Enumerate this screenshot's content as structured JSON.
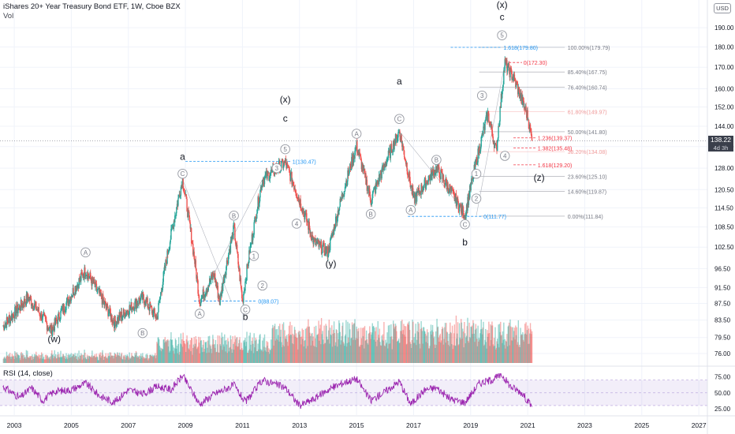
{
  "header": {
    "title": "iShares 20+ Year Treasury Bond ETF, 1W, Cboe BZX",
    "vol_label": "Vol",
    "currency": "USD",
    "last_price": "138.22",
    "countdown": "4d 3h"
  },
  "colors": {
    "up": "#26a69a",
    "down": "#ef5350",
    "fib_blue": "#2196f3",
    "fib_red": "#f23645",
    "rsi_line": "#9c27b0",
    "rsi_band": "#7e57c2",
    "wave_circle": "#9598a1"
  },
  "chart_data": [
    {
      "type": "candlestick",
      "title": "iShares 20+ Year Treasury Bond ETF, 1W, Cboe BZX",
      "x_axis": {
        "ticks": [
          "2003",
          "2005",
          "2007",
          "2009",
          "2011",
          "2013",
          "2015",
          "2017",
          "2019",
          "2021",
          "2023",
          "2025",
          "2027"
        ]
      },
      "y_axis": {
        "scale": "log",
        "ticks": [
          76.0,
          79.5,
          83.5,
          87.5,
          91.5,
          96.5,
          102.5,
          108.5,
          114.5,
          120.5,
          128.0,
          136.0,
          144.0,
          152.0,
          160.0,
          170.0,
          180.0,
          190.0
        ],
        "range": [
          74,
          200
        ]
      },
      "series": [
        {
          "points": [
            {
              "x": 2002.6,
              "y": 82
            },
            {
              "x": 2003.5,
              "y": 89
            },
            {
              "x": 2004.3,
              "y": 81
            },
            {
              "x": 2005.5,
              "y": 96
            },
            {
              "x": 2006.5,
              "y": 83
            },
            {
              "x": 2007.5,
              "y": 89
            },
            {
              "x": 2008.0,
              "y": 84
            },
            {
              "x": 2008.9,
              "y": 124
            },
            {
              "x": 2009.5,
              "y": 88
            },
            {
              "x": 2010.0,
              "y": 95
            },
            {
              "x": 2010.2,
              "y": 88
            },
            {
              "x": 2010.7,
              "y": 108
            },
            {
              "x": 2011.0,
              "y": 88
            },
            {
              "x": 2011.7,
              "y": 124
            },
            {
              "x": 2012.5,
              "y": 130
            },
            {
              "x": 2013.5,
              "y": 104
            },
            {
              "x": 2014.0,
              "y": 101
            },
            {
              "x": 2015.0,
              "y": 136
            },
            {
              "x": 2015.5,
              "y": 117
            },
            {
              "x": 2016.5,
              "y": 142
            },
            {
              "x": 2017.0,
              "y": 117
            },
            {
              "x": 2017.8,
              "y": 128
            },
            {
              "x": 2018.8,
              "y": 112
            },
            {
              "x": 2019.6,
              "y": 149
            },
            {
              "x": 2019.9,
              "y": 134
            },
            {
              "x": 2020.2,
              "y": 172
            },
            {
              "x": 2020.5,
              "y": 165
            },
            {
              "x": 2021.0,
              "y": 148
            },
            {
              "x": 2021.15,
              "y": 138.2
            }
          ]
        }
      ],
      "fib_retracement_labels": [
        {
          "text": "100.00%(179.79)",
          "value": 179.79
        },
        {
          "text": "85.40%(167.75)",
          "value": 167.75
        },
        {
          "text": "76.40%(160.74)",
          "value": 160.74
        },
        {
          "text": "61.80%(149.97)",
          "value": 149.97
        },
        {
          "text": "50.00%(141.80)",
          "value": 141.8
        },
        {
          "text": "38.20%(134.08)",
          "value": 134.08
        },
        {
          "text": "23.60%(125.10)",
          "value": 125.1
        },
        {
          "text": "14.60%(119.87)",
          "value": 119.87
        },
        {
          "text": "0.00%(111.84)",
          "value": 111.84
        }
      ],
      "fib_extension_labels": [
        {
          "text": "1.618(179.80)",
          "value": 179.8,
          "color": "blue"
        },
        {
          "text": "0(172.30)",
          "value": 172.3,
          "color": "red"
        },
        {
          "text": "1.236(139.37)",
          "value": 139.37,
          "color": "red"
        },
        {
          "text": "1.382(135.48)",
          "value": 135.48,
          "color": "red"
        },
        {
          "text": "1.618(129.20)",
          "value": 129.2,
          "color": "red"
        },
        {
          "text": "1(130.47)",
          "value": 130.47,
          "color": "blue"
        },
        {
          "text": "0(88.07)",
          "value": 88.07,
          "color": "blue"
        },
        {
          "text": "0(111.77)",
          "value": 111.77,
          "color": "blue"
        }
      ],
      "wave_labels": [
        {
          "text": "(w)",
          "x": 2004.4,
          "y": 78.5
        },
        {
          "text": "a",
          "x": 2008.9,
          "y": 131
        },
        {
          "text": "b",
          "x": 2011.1,
          "y": 83.5
        },
        {
          "text": "(x)",
          "x": 2012.5,
          "y": 154
        },
        {
          "text": "c",
          "x": 2012.5,
          "y": 146
        },
        {
          "text": "(y)",
          "x": 2014.1,
          "y": 97
        },
        {
          "text": "a",
          "x": 2016.5,
          "y": 162
        },
        {
          "text": "b",
          "x": 2018.8,
          "y": 103
        },
        {
          "text": "(x)",
          "x": 2020.1,
          "y": 201
        },
        {
          "text": "c",
          "x": 2020.1,
          "y": 194
        },
        {
          "text": "(z)",
          "x": 2021.4,
          "y": 123.5
        }
      ],
      "wave_circles": [
        {
          "text": "A",
          "x": 2005.5,
          "y": 101
        },
        {
          "text": "B",
          "x": 2007.5,
          "y": 80.5
        },
        {
          "text": "C",
          "x": 2008.9,
          "y": 126
        },
        {
          "text": "A",
          "x": 2009.5,
          "y": 85
        },
        {
          "text": "B",
          "x": 2010.7,
          "y": 112
        },
        {
          "text": "C",
          "x": 2011.1,
          "y": 86
        },
        {
          "text": "1",
          "x": 2011.4,
          "y": 100
        },
        {
          "text": "2",
          "x": 2011.7,
          "y": 92
        },
        {
          "text": "3",
          "x": 2012.2,
          "y": 128
        },
        {
          "text": "4",
          "x": 2012.9,
          "y": 109.5
        },
        {
          "text": "5",
          "x": 2012.5,
          "y": 135
        },
        {
          "text": "A",
          "x": 2015.0,
          "y": 141
        },
        {
          "text": "B",
          "x": 2015.5,
          "y": 112.5
        },
        {
          "text": "C",
          "x": 2016.5,
          "y": 147
        },
        {
          "text": "A",
          "x": 2016.9,
          "y": 113.8
        },
        {
          "text": "B",
          "x": 2017.8,
          "y": 131
        },
        {
          "text": "C",
          "x": 2018.8,
          "y": 109.3
        },
        {
          "text": "1",
          "x": 2019.2,
          "y": 126
        },
        {
          "text": "2",
          "x": 2019.2,
          "y": 117.5
        },
        {
          "text": "3",
          "x": 2019.4,
          "y": 157
        },
        {
          "text": "4",
          "x": 2020.2,
          "y": 132.5
        },
        {
          "text": "5",
          "x": 2020.1,
          "y": 186
        }
      ]
    },
    {
      "type": "line",
      "title": "RSI (14, close)",
      "y_axis": {
        "ticks": [
          25.0,
          50.0,
          75.0
        ],
        "range": [
          20,
          82
        ]
      },
      "bands": {
        "upper": 70,
        "lower": 30
      },
      "x": [
        2002.6,
        2003.2,
        2003.6,
        2004.0,
        2004.4,
        2005.0,
        2005.5,
        2006.0,
        2006.5,
        2007.0,
        2007.5,
        2008.0,
        2008.5,
        2008.9,
        2009.5,
        2010.0,
        2010.7,
        2011.1,
        2011.7,
        2012.0,
        2012.5,
        2013.0,
        2013.5,
        2014.0,
        2014.6,
        2015.0,
        2015.5,
        2016.0,
        2016.5,
        2016.9,
        2017.4,
        2017.8,
        2018.3,
        2018.8,
        2019.3,
        2019.7,
        2020.1,
        2020.4,
        2020.8,
        2021.15
      ],
      "values": [
        60,
        42,
        58,
        38,
        52,
        55,
        65,
        45,
        35,
        55,
        48,
        60,
        55,
        77,
        32,
        48,
        62,
        35,
        70,
        66,
        58,
        30,
        40,
        55,
        67,
        72,
        38,
        52,
        68,
        32,
        55,
        58,
        40,
        35,
        65,
        70,
        78,
        60,
        50,
        28
      ]
    }
  ]
}
